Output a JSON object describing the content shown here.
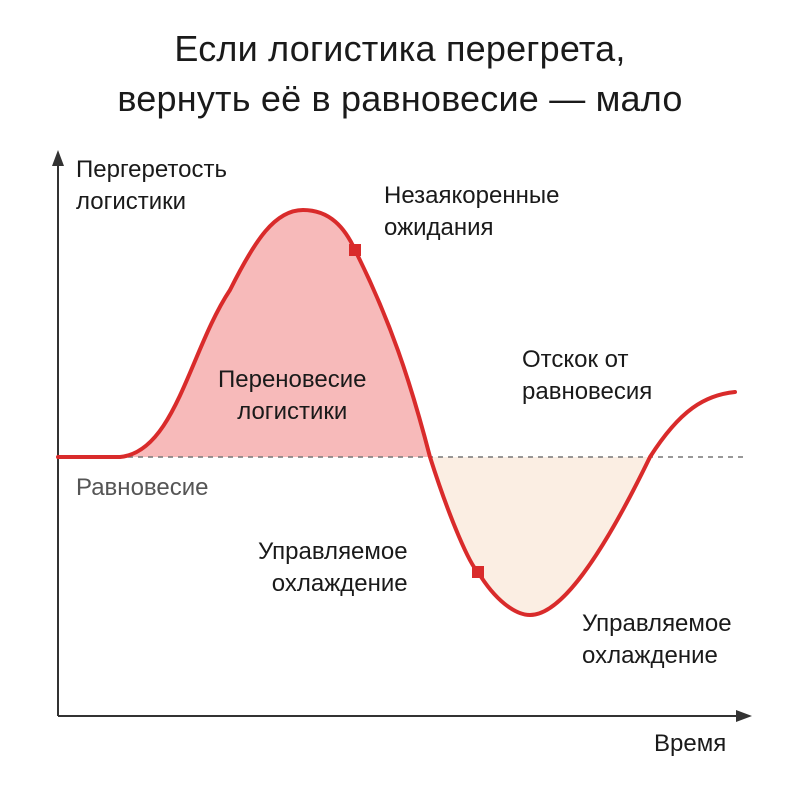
{
  "title": {
    "line1": "Если логистика перегрета,",
    "line2": "вернуть её в равновесие — мало"
  },
  "axes": {
    "y_label_line1": "Пергеретость",
    "y_label_line2": "логистики",
    "x_label": "Время",
    "baseline_label": "Равновесие"
  },
  "annotations": {
    "peak_line1": "Незаякоренные",
    "peak_line2": "ожидания",
    "overweight_line1": "Переновесие",
    "overweight_line2": "логистики",
    "cooling1_line1": "Управляемое",
    "cooling1_line2": "охлаждение",
    "cooling2_line1": "Управляемое",
    "cooling2_line2": "охлаждение",
    "rebound_line1": "Отскок от",
    "rebound_line2": "равновесия"
  },
  "colors": {
    "curve": "#d92b2b",
    "positive_fill": "#f4a3a3",
    "negative_fill": "#fbeee3",
    "axis": "#333333",
    "baseline": "#777777"
  }
}
